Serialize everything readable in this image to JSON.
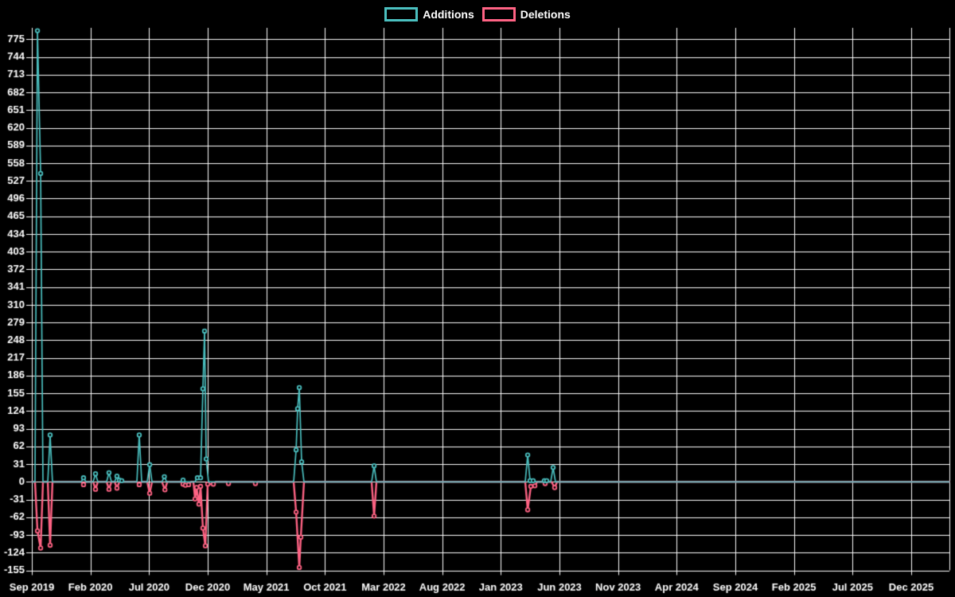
{
  "legend": {
    "items": [
      {
        "label": "Additions",
        "color": "#4bc0c0"
      },
      {
        "label": "Deletions",
        "color": "#ff6384"
      }
    ]
  },
  "chart_data": {
    "type": "line",
    "title": "",
    "xlabel": "",
    "ylabel": "",
    "background_color": "#000000",
    "grid_color": "#ffffff",
    "text_color": "#ffffff",
    "grid_on": true,
    "legend_position": "top-center",
    "x_axis": {
      "unit": "months since Sep 2019",
      "tick_labels": [
        "Sep 2019",
        "Feb 2020",
        "Jul 2020",
        "Dec 2020",
        "May 2021",
        "Oct 2021",
        "Mar 2022",
        "Aug 2022",
        "Jan 2023",
        "Jun 2023",
        "Nov 2023",
        "Apr 2024",
        "Sep 2024",
        "Feb 2025",
        "Jul 2025",
        "Dec 2025"
      ],
      "tick_spacing_months": 5,
      "xlim_months": [
        0,
        78.3
      ]
    },
    "y_axis": {
      "ticks": [
        775,
        744,
        713,
        682,
        651,
        620,
        589,
        558,
        527,
        496,
        465,
        434,
        403,
        372,
        341,
        310,
        279,
        248,
        217,
        186,
        155,
        124,
        93,
        62,
        31,
        0,
        -31,
        -62,
        -93,
        -124,
        -155
      ],
      "ylim": [
        -155,
        795
      ]
    },
    "series": [
      {
        "name": "Additions",
        "color": "#4bc0c0",
        "points": [
          [
            0,
            0
          ],
          [
            0.27,
            0
          ],
          [
            0.48,
            790
          ],
          [
            0.75,
            540
          ],
          [
            0.95,
            0
          ],
          [
            1.36,
            0
          ],
          [
            1.56,
            82
          ],
          [
            1.76,
            0
          ],
          [
            4.21,
            0
          ],
          [
            4.41,
            7
          ],
          [
            4.62,
            0
          ],
          [
            5.23,
            0
          ],
          [
            5.43,
            14
          ],
          [
            5.63,
            0
          ],
          [
            6.38,
            0
          ],
          [
            6.58,
            16
          ],
          [
            6.79,
            0
          ],
          [
            7.06,
            0
          ],
          [
            7.26,
            10
          ],
          [
            7.47,
            3
          ],
          [
            7.67,
            2
          ],
          [
            7.87,
            0
          ],
          [
            8.96,
            0
          ],
          [
            9.16,
            82
          ],
          [
            9.37,
            0
          ],
          [
            9.84,
            0
          ],
          [
            10.05,
            30
          ],
          [
            10.25,
            0
          ],
          [
            11.1,
            0
          ],
          [
            11.3,
            9
          ],
          [
            11.5,
            0
          ],
          [
            12.69,
            0
          ],
          [
            12.9,
            3
          ],
          [
            13.1,
            0
          ],
          [
            13.9,
            0
          ],
          [
            14.12,
            7
          ],
          [
            14.39,
            7
          ],
          [
            14.59,
            163
          ],
          [
            14.73,
            264
          ],
          [
            14.87,
            40
          ],
          [
            15.07,
            0
          ],
          [
            22.33,
            0
          ],
          [
            22.54,
            56
          ],
          [
            22.67,
            128
          ],
          [
            22.81,
            165
          ],
          [
            23.01,
            35
          ],
          [
            23.21,
            0
          ],
          [
            28.98,
            0
          ],
          [
            29.19,
            28
          ],
          [
            29.39,
            0
          ],
          [
            42.08,
            0
          ],
          [
            42.29,
            47
          ],
          [
            42.49,
            2
          ],
          [
            42.76,
            2
          ],
          [
            43.03,
            0
          ],
          [
            43.51,
            0
          ],
          [
            43.71,
            2
          ],
          [
            43.91,
            2
          ],
          [
            44.12,
            0
          ],
          [
            44.25,
            0
          ],
          [
            44.46,
            25
          ],
          [
            44.66,
            0
          ],
          [
            78.26,
            0
          ]
        ]
      },
      {
        "name": "Deletions",
        "color": "#ff6384",
        "points": [
          [
            0,
            0
          ],
          [
            0.27,
            0
          ],
          [
            0.48,
            -86
          ],
          [
            0.75,
            -116
          ],
          [
            0.95,
            0
          ],
          [
            1.36,
            0
          ],
          [
            1.56,
            -111
          ],
          [
            1.76,
            0
          ],
          [
            4.21,
            0
          ],
          [
            4.41,
            -5
          ],
          [
            4.62,
            0
          ],
          [
            5.23,
            0
          ],
          [
            5.43,
            -13
          ],
          [
            5.63,
            0
          ],
          [
            6.38,
            0
          ],
          [
            6.58,
            -13
          ],
          [
            6.79,
            0
          ],
          [
            7.06,
            0
          ],
          [
            7.26,
            -11
          ],
          [
            7.47,
            0
          ],
          [
            8.96,
            0
          ],
          [
            9.16,
            -5
          ],
          [
            9.37,
            0
          ],
          [
            9.84,
            0
          ],
          [
            10.05,
            -20
          ],
          [
            10.25,
            0
          ],
          [
            11.1,
            0
          ],
          [
            11.35,
            -14
          ],
          [
            11.55,
            0
          ],
          [
            12.69,
            0
          ],
          [
            12.9,
            -4
          ],
          [
            13.1,
            -6
          ],
          [
            13.37,
            -5
          ],
          [
            13.58,
            0
          ],
          [
            13.78,
            0
          ],
          [
            13.92,
            -30
          ],
          [
            14.05,
            -10
          ],
          [
            14.25,
            -39
          ],
          [
            14.39,
            -8
          ],
          [
            14.59,
            -81
          ],
          [
            14.8,
            -112
          ],
          [
            15.0,
            -4
          ],
          [
            15.48,
            -4
          ],
          [
            15.68,
            0
          ],
          [
            16.63,
            0
          ],
          [
            16.77,
            -3
          ],
          [
            16.97,
            0
          ],
          [
            18.87,
            0
          ],
          [
            19.07,
            -3
          ],
          [
            19.27,
            0
          ],
          [
            22.33,
            0
          ],
          [
            22.54,
            -53
          ],
          [
            22.81,
            -150
          ],
          [
            22.94,
            -97
          ],
          [
            23.21,
            0
          ],
          [
            28.98,
            0
          ],
          [
            29.19,
            -60
          ],
          [
            29.39,
            0
          ],
          [
            42.08,
            0
          ],
          [
            42.29,
            -49
          ],
          [
            42.56,
            -8
          ],
          [
            42.9,
            -7
          ],
          [
            43.1,
            0
          ],
          [
            43.58,
            0
          ],
          [
            43.78,
            -3
          ],
          [
            43.98,
            0
          ],
          [
            44.32,
            0
          ],
          [
            44.59,
            -10
          ],
          [
            44.8,
            0
          ],
          [
            78.26,
            0
          ]
        ]
      }
    ]
  }
}
